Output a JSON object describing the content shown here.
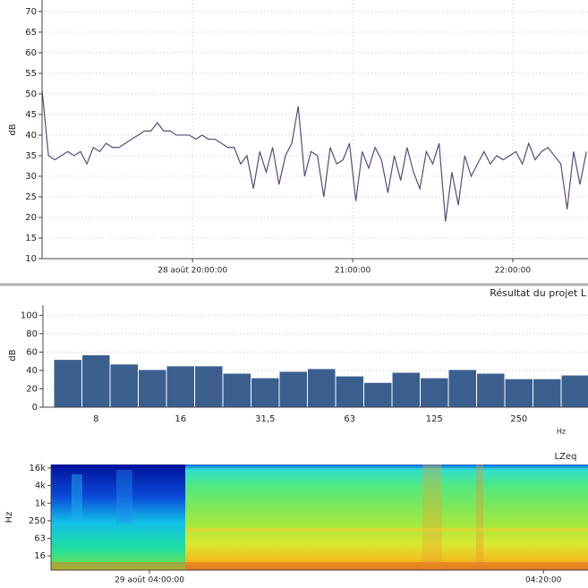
{
  "chart_data": [
    {
      "type": "line",
      "y_label": "dB",
      "color": "#5b4a78",
      "grid": true,
      "xlim": [
        19.06,
        22.47
      ],
      "ylim": [
        10,
        72.8
      ],
      "yticks": [
        10,
        15,
        20,
        25,
        30,
        35,
        40,
        45,
        50,
        55,
        60,
        65,
        70
      ],
      "xticks": [
        {
          "value": 20,
          "label": "28 août 20:00:00"
        },
        {
          "value": 21,
          "label": "21:00:00"
        },
        {
          "value": 22,
          "label": "22:00:00"
        }
      ],
      "x": [
        19.06,
        19.1,
        19.14,
        19.18,
        19.22,
        19.26,
        19.3,
        19.34,
        19.38,
        19.42,
        19.46,
        19.5,
        19.54,
        19.58,
        19.62,
        19.66,
        19.7,
        19.74,
        19.78,
        19.82,
        19.86,
        19.9,
        19.94,
        19.98,
        20.02,
        20.06,
        20.1,
        20.14,
        20.18,
        20.22,
        20.26,
        20.3,
        20.34,
        20.38,
        20.42,
        20.46,
        20.5,
        20.54,
        20.58,
        20.62,
        20.66,
        20.7,
        20.74,
        20.78,
        20.82,
        20.86,
        20.9,
        20.94,
        20.98,
        21.02,
        21.06,
        21.1,
        21.14,
        21.18,
        21.22,
        21.26,
        21.3,
        21.34,
        21.38,
        21.42,
        21.46,
        21.5,
        21.54,
        21.58,
        21.62,
        21.66,
        21.7,
        21.74,
        21.78,
        21.82,
        21.86,
        21.9,
        21.94,
        21.98,
        22.02,
        22.06,
        22.1,
        22.14,
        22.18,
        22.22,
        22.26,
        22.3,
        22.34,
        22.38,
        22.42,
        22.46
      ],
      "values": [
        51,
        35,
        34,
        35,
        36,
        35,
        36,
        33,
        37,
        36,
        38,
        37,
        37,
        38,
        39,
        40,
        41,
        41,
        43,
        41,
        41,
        40,
        40,
        40,
        39,
        40,
        39,
        39,
        38,
        37,
        37,
        33,
        35,
        27,
        36,
        31,
        37,
        28,
        35,
        38,
        47,
        30,
        36,
        35,
        25,
        37,
        33,
        34,
        38,
        24,
        36,
        32,
        37,
        34,
        26,
        35,
        29,
        37,
        31,
        27,
        36,
        33,
        38,
        19,
        31,
        23,
        35,
        30,
        33,
        36,
        33,
        35,
        34,
        35,
        36,
        33,
        38,
        34,
        36,
        37,
        35,
        33,
        22,
        36,
        28,
        36
      ]
    },
    {
      "type": "bar",
      "title": "Résultat du projet L",
      "y_label": "dB",
      "x_label": "Hz",
      "color": "#3a5f8f",
      "grid": true,
      "ylim": [
        0,
        111
      ],
      "yticks": [
        0,
        20,
        40,
        60,
        80,
        100
      ],
      "categories": [
        null,
        "8",
        null,
        null,
        "16",
        null,
        null,
        "31,5",
        null,
        null,
        "63",
        null,
        null,
        "125",
        null,
        null,
        "250",
        null,
        null
      ],
      "values": [
        52,
        57,
        47,
        41,
        45,
        45,
        37,
        32,
        39,
        42,
        34,
        27,
        38,
        32,
        41,
        37,
        31,
        31,
        35
      ]
    },
    {
      "type": "spectrogram",
      "title": "LZeq",
      "y_label": "Hz",
      "log_y": true,
      "ylim": [
        5.2,
        21000
      ],
      "yticks": [
        16,
        63,
        250,
        {
          "value": 1000,
          "label": "1k"
        },
        {
          "value": 4000,
          "label": "4k"
        },
        {
          "value": 16000,
          "label": "16k"
        }
      ],
      "xlim": [
        3.9167,
        4.371
      ],
      "xticks": [
        {
          "value": 4,
          "label": "29 août 04:00:00"
        },
        {
          "value": 4.3333,
          "label": "04:20:00"
        }
      ]
    }
  ]
}
